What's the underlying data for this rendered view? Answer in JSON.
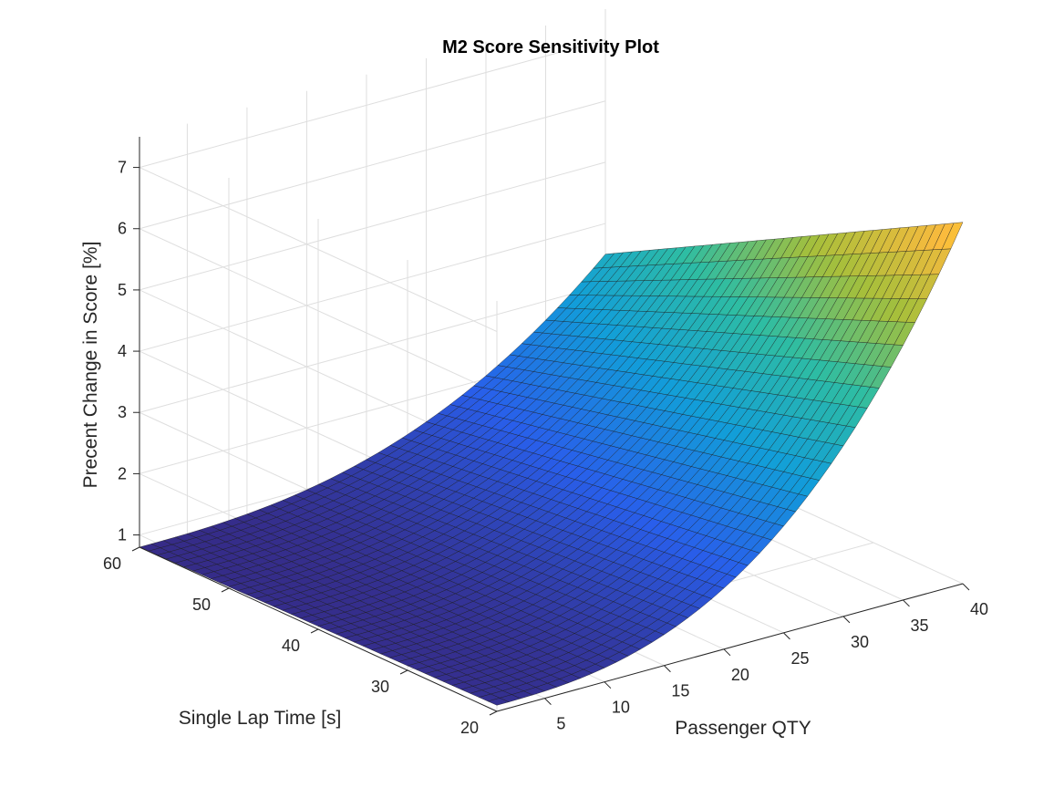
{
  "chart_data": {
    "type": "surface",
    "title": "M2 Score Sensitivity Plot",
    "xlabel": "Passenger QTY",
    "ylabel": "Single Lap Time [s]",
    "zlabel": "Precent Change in Score [%]",
    "xlim": [
      1,
      40
    ],
    "ylim": [
      20,
      60
    ],
    "zlim": [
      0.8,
      7.5
    ],
    "xticks": [
      5,
      10,
      15,
      20,
      25,
      30,
      35,
      40
    ],
    "yticks": [
      20,
      30,
      40,
      50,
      60
    ],
    "zticks": [
      1,
      2,
      3,
      4,
      5,
      6,
      7
    ],
    "grid": true,
    "colormap": "parula",
    "mesh_x_steps": 39,
    "mesh_y_steps": 40,
    "corner_values": [
      {
        "x": 1,
        "y": 20,
        "z": 0.9
      },
      {
        "x": 1,
        "y": 60,
        "z": 0.8
      },
      {
        "x": 40,
        "y": 20,
        "z": 6.7
      },
      {
        "x": 40,
        "y": 60,
        "z": 3.5
      }
    ]
  }
}
